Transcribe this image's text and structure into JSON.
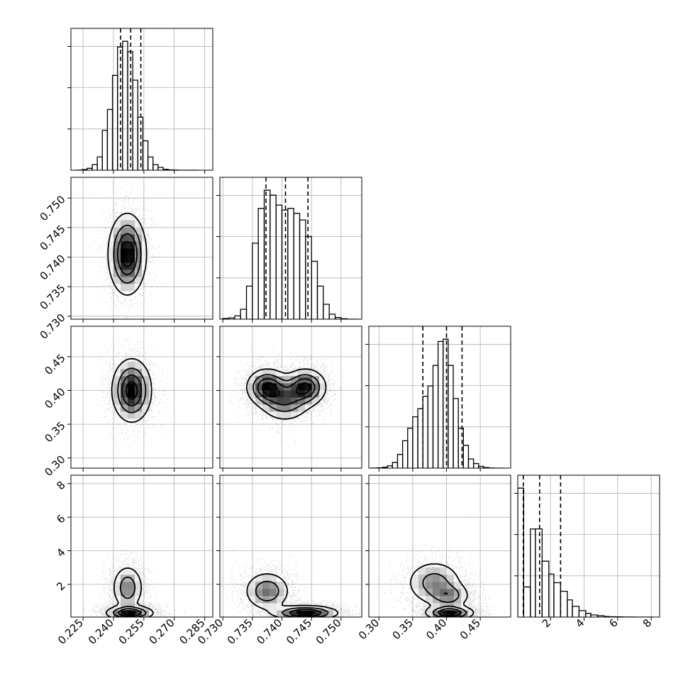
{
  "chart_data": {
    "type": "corner",
    "colors": {
      "ink": "#000000",
      "grid": "#b0b0b0",
      "scatter": "#000000",
      "density_max": "#000000",
      "density_min": "#ffffff"
    },
    "grid": true,
    "parameters": [
      {
        "range": [
          0.219,
          0.289
        ],
        "ticks": [
          "0.225",
          "0.240",
          "0.255",
          "0.270",
          "0.285"
        ],
        "tick_values": [
          0.225,
          0.24,
          0.255,
          0.27,
          0.285
        ]
      },
      {
        "range": [
          0.7295,
          0.7535
        ],
        "ticks": [
          "0.730",
          "0.735",
          "0.740",
          "0.745",
          "0.750"
        ],
        "tick_values": [
          0.73,
          0.735,
          0.74,
          0.745,
          0.75
        ]
      },
      {
        "range": [
          0.285,
          0.495
        ],
        "ticks": [
          "0.30",
          "0.35",
          "0.40",
          "0.45"
        ],
        "tick_values": [
          0.3,
          0.35,
          0.4,
          0.45
        ]
      },
      {
        "range": [
          0.05,
          8.5
        ],
        "ticks": [
          "2",
          "4",
          "6",
          "8"
        ],
        "tick_values": [
          2,
          4,
          6,
          8
        ]
      }
    ],
    "quantile_lines": [
      [
        0.2435,
        0.2485,
        0.2535
      ],
      [
        0.7373,
        0.7406,
        0.7444
      ],
      [
        0.365,
        0.4,
        0.423
      ],
      [
        0.38,
        1.35,
        2.6
      ]
    ],
    "histograms": [
      {
        "edges": [
          0.222,
          0.2245,
          0.227,
          0.2295,
          0.232,
          0.2345,
          0.237,
          0.2395,
          0.242,
          0.2445,
          0.247,
          0.2495,
          0.252,
          0.2545,
          0.257,
          0.2595,
          0.262,
          0.2645,
          0.267,
          0.2695,
          0.272,
          0.2745,
          0.277,
          0.2795,
          0.282
        ],
        "counts": [
          0.2,
          1.5,
          4,
          12,
          28,
          84,
          128,
          200,
          260,
          272,
          250,
          190,
          112,
          62,
          28,
          12,
          6,
          2,
          0.8,
          0.3,
          0,
          0,
          0,
          0
        ]
      },
      {
        "edges": [
          0.73,
          0.731,
          0.732,
          0.733,
          0.734,
          0.735,
          0.736,
          0.737,
          0.738,
          0.739,
          0.74,
          0.741,
          0.742,
          0.743,
          0.744,
          0.745,
          0.746,
          0.747,
          0.748,
          0.749,
          0.75,
          0.751,
          0.752,
          0.753
        ],
        "counts": [
          0.8,
          1.5,
          4,
          12,
          40,
          92,
          134,
          156,
          150,
          138,
          132,
          134,
          128,
          120,
          100,
          70,
          40,
          18,
          6,
          2,
          0.5,
          0,
          0
        ]
      },
      {
        "edges": [
          0.29,
          0.2975,
          0.305,
          0.3125,
          0.32,
          0.3275,
          0.335,
          0.3425,
          0.35,
          0.3575,
          0.365,
          0.3725,
          0.38,
          0.3875,
          0.395,
          0.4025,
          0.41,
          0.4175,
          0.425,
          0.4325,
          0.44,
          0.4475,
          0.455,
          0.4625,
          0.47,
          0.4775,
          0.485
        ],
        "counts": [
          0.2,
          0.5,
          1.5,
          4,
          10,
          24,
          48,
          70,
          90,
          104,
          126,
          144,
          180,
          222,
          226,
          180,
          122,
          70,
          40,
          16,
          8,
          3,
          1,
          0.3,
          0,
          0
        ]
      },
      {
        "edges": [
          0.05,
          0.4,
          0.8,
          1.1,
          1.5,
          1.9,
          2.2,
          2.6,
          3.0,
          3.3,
          3.7,
          4.1,
          4.4,
          4.8,
          5.2,
          5.5,
          5.9,
          6.3,
          6.6,
          7.0,
          7.3,
          7.7,
          8.1
        ],
        "counts": [
          120,
          28,
          82,
          82,
          52,
          40,
          32,
          24,
          16,
          10,
          6,
          3.5,
          2,
          1.2,
          0.6,
          0.3,
          0.2,
          0.1,
          0.05,
          0,
          0,
          0
        ]
      }
    ],
    "pairs": [
      {
        "x": 0,
        "y": 1,
        "blobs": [
          {
            "cx": 0.2468,
            "cy": 0.7405,
            "sx": 0.0048,
            "sy": 0.0035,
            "w": 1
          }
        ]
      },
      {
        "x": 0,
        "y": 2,
        "blobs": [
          {
            "cx": 0.249,
            "cy": 0.4,
            "sx": 0.005,
            "sy": 0.024,
            "w": 1
          }
        ]
      },
      {
        "x": 0,
        "y": 3,
        "blobs": [
          {
            "cx": 0.248,
            "cy": 0.3,
            "sx": 0.006,
            "sy": 0.22,
            "w": 1.3
          },
          {
            "cx": 0.247,
            "cy": 1.8,
            "sx": 0.004,
            "sy": 0.7,
            "w": 0.8
          }
        ]
      },
      {
        "x": 1,
        "y": 2,
        "blobs": [
          {
            "cx": 0.7375,
            "cy": 0.405,
            "sx": 0.0018,
            "sy": 0.014,
            "w": 1
          },
          {
            "cx": 0.744,
            "cy": 0.405,
            "sx": 0.0018,
            "sy": 0.014,
            "w": 1
          },
          {
            "cx": 0.7405,
            "cy": 0.385,
            "sx": 0.0022,
            "sy": 0.016,
            "w": 0.7
          }
        ]
      },
      {
        "x": 1,
        "y": 3,
        "blobs": [
          {
            "cx": 0.744,
            "cy": 0.3,
            "sx": 0.0028,
            "sy": 0.22,
            "w": 1.3
          },
          {
            "cx": 0.7375,
            "cy": 1.6,
            "sx": 0.002,
            "sy": 0.6,
            "w": 0.8
          }
        ]
      },
      {
        "x": 2,
        "y": 3,
        "blobs": [
          {
            "cx": 0.405,
            "cy": 0.3,
            "sx": 0.018,
            "sy": 0.22,
            "w": 1.3
          },
          {
            "cx": 0.382,
            "cy": 2.1,
            "sx": 0.022,
            "sy": 0.7,
            "w": 0.7
          },
          {
            "cx": 0.405,
            "cy": 1.3,
            "sx": 0.016,
            "sy": 0.4,
            "w": 0.6
          }
        ]
      }
    ]
  }
}
